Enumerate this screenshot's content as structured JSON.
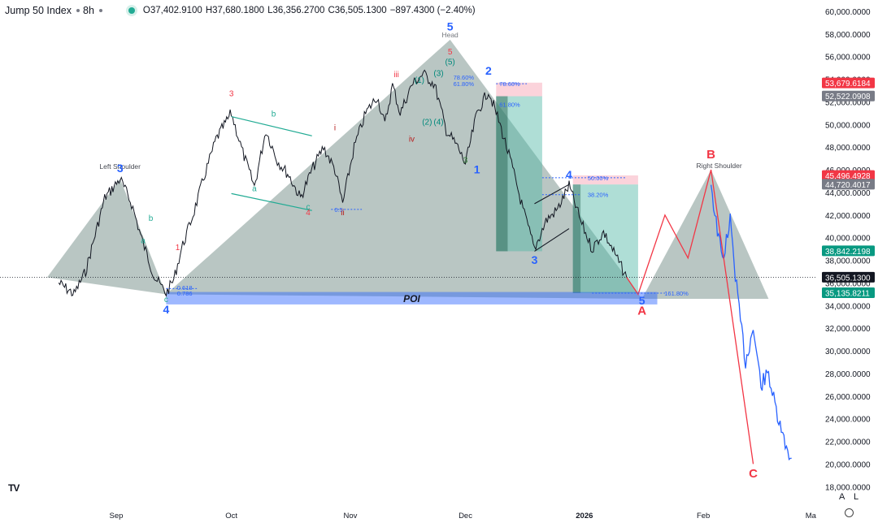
{
  "header": {
    "symbol": "Jump 50 Index",
    "interval": "8h",
    "open": "O37,402.9100",
    "high": "H37,680.1800",
    "low": "L36,356.2700",
    "close": "C36,505.1300",
    "change": "−897.4300 (−2.40%)"
  },
  "chart_data": {
    "type": "line",
    "title": "Jump 50 Index · 8h",
    "y_axis_labels": [
      "60,000.0000",
      "58,000.0000",
      "56,000.0000",
      "54,000.0000",
      "52,000.0000",
      "50,000.0000",
      "48,000.0000",
      "46,000.0000",
      "44,000.0000",
      "42,000.0000",
      "40,000.0000",
      "38,000.0000",
      "36,000.0000",
      "34,000.0000",
      "32,000.0000",
      "30,000.0000",
      "28,000.0000",
      "26,000.0000",
      "24,000.0000",
      "22,000.0000",
      "20,000.0000",
      "18,000.0000"
    ],
    "ylim": [
      17000,
      61000
    ],
    "x_axis_labels": [
      "Sep",
      "Oct",
      "Nov",
      "Dec",
      "2026",
      "Feb",
      "Ma"
    ],
    "price_tags": [
      {
        "value": 53679.6184,
        "text": "53,679.6184",
        "color": "#f23645"
      },
      {
        "value": 52522.0908,
        "text": "52,522.0908",
        "color": "#787b86"
      },
      {
        "value": 45496.4928,
        "text": "45,496.4928",
        "color": "#f23645"
      },
      {
        "value": 44720.4017,
        "text": "44,720.4017",
        "color": "#787b86"
      },
      {
        "value": 38842.2198,
        "text": "38,842.2198",
        "color": "#089981"
      },
      {
        "value": 36505.13,
        "text": "36,505.1300",
        "color": "#131722"
      },
      {
        "value": 35135.8211,
        "text": "35,135.8211",
        "color": "#089981"
      }
    ],
    "price_history_pivots": [
      {
        "x": "Aug 17",
        "y": 36000
      },
      {
        "x": "Aug 21",
        "y": 35000
      },
      {
        "x": "Aug 24",
        "y": 37000
      },
      {
        "x": "Aug 29",
        "y": 43500
      },
      {
        "x": "Sep 02",
        "y": 45200
      },
      {
        "x": "Sep 05",
        "y": 43000
      },
      {
        "x": "Sep 08",
        "y": 39500
      },
      {
        "x": "Sep 11",
        "y": 36500
      },
      {
        "x": "Sep 14",
        "y": 35100
      },
      {
        "x": "Sep 16",
        "y": 36300
      },
      {
        "x": "Sep 18",
        "y": 39000
      },
      {
        "x": "Sep 21",
        "y": 42000
      },
      {
        "x": "Sep 24",
        "y": 45500
      },
      {
        "x": "Sep 27",
        "y": 48700
      },
      {
        "x": "Oct 01",
        "y": 51000
      },
      {
        "x": "Oct 04",
        "y": 47500
      },
      {
        "x": "Oct 07",
        "y": 44500
      },
      {
        "x": "Oct 10",
        "y": 49500
      },
      {
        "x": "Oct 13",
        "y": 46800
      },
      {
        "x": "Oct 16",
        "y": 45500
      },
      {
        "x": "Oct 19",
        "y": 43500
      },
      {
        "x": "Oct 22",
        "y": 46000
      },
      {
        "x": "Oct 25",
        "y": 48000
      },
      {
        "x": "Oct 28",
        "y": 46000
      },
      {
        "x": "Oct 30",
        "y": 43000
      },
      {
        "x": "Nov 02",
        "y": 48000
      },
      {
        "x": "Nov 05",
        "y": 51000
      },
      {
        "x": "Nov 08",
        "y": 52500
      },
      {
        "x": "Nov 10",
        "y": 50000
      },
      {
        "x": "Nov 12",
        "y": 53500
      },
      {
        "x": "Nov 14",
        "y": 51000
      },
      {
        "x": "Nov 17",
        "y": 53500
      },
      {
        "x": "Nov 20",
        "y": 54500
      },
      {
        "x": "Nov 23",
        "y": 53500
      },
      {
        "x": "Nov 26",
        "y": 49500
      },
      {
        "x": "Nov 29",
        "y": 48000
      },
      {
        "x": "Dec 01",
        "y": 46500
      },
      {
        "x": "Dec 04",
        "y": 51000
      },
      {
        "x": "Dec 07",
        "y": 53000
      },
      {
        "x": "Dec 10",
        "y": 50000
      },
      {
        "x": "Dec 13",
        "y": 46500
      },
      {
        "x": "Dec 16",
        "y": 42500
      },
      {
        "x": "Dec 19",
        "y": 39000
      },
      {
        "x": "Dec 22",
        "y": 41500
      },
      {
        "x": "Dec 25",
        "y": 42500
      },
      {
        "x": "Dec 28",
        "y": 44600
      },
      {
        "x": "Dec 31",
        "y": 41500
      },
      {
        "x": "Jan 03",
        "y": 39000
      },
      {
        "x": "Jan 06",
        "y": 40500
      },
      {
        "x": "Jan 09",
        "y": 38500
      },
      {
        "x": "Jan 12",
        "y": 36500
      }
    ],
    "projection_path": [
      {
        "x": "Jan 12",
        "y": 36500
      },
      {
        "x": "Jan 15",
        "y": 35000
      },
      {
        "x": "Jan 22",
        "y": 42000
      },
      {
        "x": "Jan 28",
        "y": 38200
      },
      {
        "x": "Feb 03",
        "y": 46000
      },
      {
        "x": "Feb 14",
        "y": 20000
      }
    ],
    "projected_price_path": [
      {
        "x": "Feb 03",
        "y": 45000
      },
      {
        "x": "Feb 04",
        "y": 42000
      },
      {
        "x": "Feb 06",
        "y": 38000
      },
      {
        "x": "Feb 08",
        "y": 41500
      },
      {
        "x": "Feb 10",
        "y": 34500
      },
      {
        "x": "Feb 12",
        "y": 29000
      },
      {
        "x": "Feb 14",
        "y": 32000
      },
      {
        "x": "Feb 16",
        "y": 27000
      },
      {
        "x": "Feb 18",
        "y": 28000
      },
      {
        "x": "Feb 20",
        "y": 24500
      },
      {
        "x": "Feb 22",
        "y": 22000
      },
      {
        "x": "Feb 24",
        "y": 20500
      }
    ],
    "poi_zone": {
      "label": "POI",
      "from": "Sep 14",
      "to": "Jan 20",
      "y_low": 34100,
      "y_high": 35200
    },
    "head_shoulders": [
      {
        "label": "Left Shoulder",
        "x": "Sep 02",
        "y": 45200
      },
      {
        "label": "Head",
        "x": "Nov 27",
        "y": 57500
      },
      {
        "label": "Right Shoulder",
        "x": "Feb 03",
        "y": 46000
      }
    ],
    "fib_labels": [
      {
        "text": "0.618",
        "x": "Sep 16",
        "y": 35600
      },
      {
        "text": "0.786",
        "x": "Sep 16",
        "y": 35100
      },
      {
        "text": "0.5",
        "x": "Oct 27",
        "y": 42500
      },
      {
        "text": "78.60%",
        "x": "Nov 27",
        "y": 54200
      },
      {
        "text": "61.80%",
        "x": "Nov 27",
        "y": 53600
      },
      {
        "text": "78.60%",
        "x": "Dec 09",
        "y": 53600
      },
      {
        "text": "61.80%",
        "x": "Dec 09",
        "y": 51800
      },
      {
        "text": "50.00%",
        "x": "Jan 01",
        "y": 45300
      },
      {
        "text": "38.20%",
        "x": "Jan 01",
        "y": 43800
      },
      {
        "text": "161.80%",
        "x": "Jan 21",
        "y": 35100
      }
    ],
    "wave_labels": [
      {
        "text": "3",
        "x": "Sep 02",
        "y": 45800,
        "color": "#2962ff"
      },
      {
        "text": "4",
        "x": "Sep 14",
        "y": 33300,
        "color": "#2962ff"
      },
      {
        "text": "5",
        "x": "Nov 27",
        "y": 58300,
        "color": "#2962ff"
      },
      {
        "text": "2",
        "x": "Dec 07",
        "y": 54400,
        "color": "#2962ff"
      },
      {
        "text": "1",
        "x": "Dec 04",
        "y": 45700,
        "color": "#2962ff"
      },
      {
        "text": "3",
        "x": "Dec 19",
        "y": 37700,
        "color": "#2962ff"
      },
      {
        "text": "4",
        "x": "Dec 28",
        "y": 45200,
        "color": "#2962ff"
      },
      {
        "text": "5",
        "x": "Jan 16",
        "y": 34100,
        "color": "#2962ff"
      },
      {
        "text": "1",
        "x": "Sep 17",
        "y": 38900,
        "color": "#f23645"
      },
      {
        "text": "3",
        "x": "Oct 01",
        "y": 52500,
        "color": "#f23645"
      },
      {
        "text": "4",
        "x": "Oct 21",
        "y": 42000,
        "color": "#f23645"
      },
      {
        "text": "5",
        "x": "Nov 27",
        "y": 56200,
        "color": "#f23645"
      },
      {
        "text": "A",
        "x": "Jan 16",
        "y": 33200,
        "color": "#f23645"
      },
      {
        "text": "B",
        "x": "Feb 03",
        "y": 47000,
        "color": "#f23645"
      },
      {
        "text": "C",
        "x": "Feb 14",
        "y": 18800,
        "color": "#f23645"
      },
      {
        "text": "iii",
        "x": "Nov 13",
        "y": 54200,
        "color": "#f23645"
      },
      {
        "text": "iv",
        "x": "Nov 17",
        "y": 48500,
        "color": "#b71c1c"
      },
      {
        "text": "ii",
        "x": "Oct 30",
        "y": 42000,
        "color": "#b71c1c"
      },
      {
        "text": "i",
        "x": "Oct 28",
        "y": 49500,
        "color": "#b71c1c"
      },
      {
        "text": "a",
        "x": "Sep 08",
        "y": 39500,
        "color": "#22ab94"
      },
      {
        "text": "b",
        "x": "Sep 10",
        "y": 41500,
        "color": "#22ab94"
      },
      {
        "text": "c",
        "x": "Sep 14",
        "y": 34300,
        "color": "#22ab94"
      },
      {
        "text": "b",
        "x": "Oct 12",
        "y": 50700,
        "color": "#22ab94"
      },
      {
        "text": "a",
        "x": "Oct 07",
        "y": 44100,
        "color": "#22ab94"
      },
      {
        "text": "c",
        "x": "Oct 21",
        "y": 42500,
        "color": "#22ab94"
      },
      {
        "text": "(1)",
        "x": "Nov 19",
        "y": 53700,
        "color": "#00897b"
      },
      {
        "text": "(2)",
        "x": "Nov 21",
        "y": 50000,
        "color": "#00897b"
      },
      {
        "text": "(3)",
        "x": "Nov 24",
        "y": 54300,
        "color": "#00897b"
      },
      {
        "text": "(4)",
        "x": "Nov 24",
        "y": 50000,
        "color": "#00897b"
      },
      {
        "text": "(5)",
        "x": "Nov 27",
        "y": 55300,
        "color": "#00897b"
      },
      {
        "text": "3",
        "x": "Dec 01",
        "y": 46600,
        "color": "#2e7d32"
      }
    ]
  },
  "labels": {
    "left_shoulder": "Left Shoulder",
    "head": "Head",
    "right_shoulder": "Right Shoulder",
    "poi": "POI"
  },
  "corner_buttons": {
    "auto": "A",
    "log": "L"
  }
}
